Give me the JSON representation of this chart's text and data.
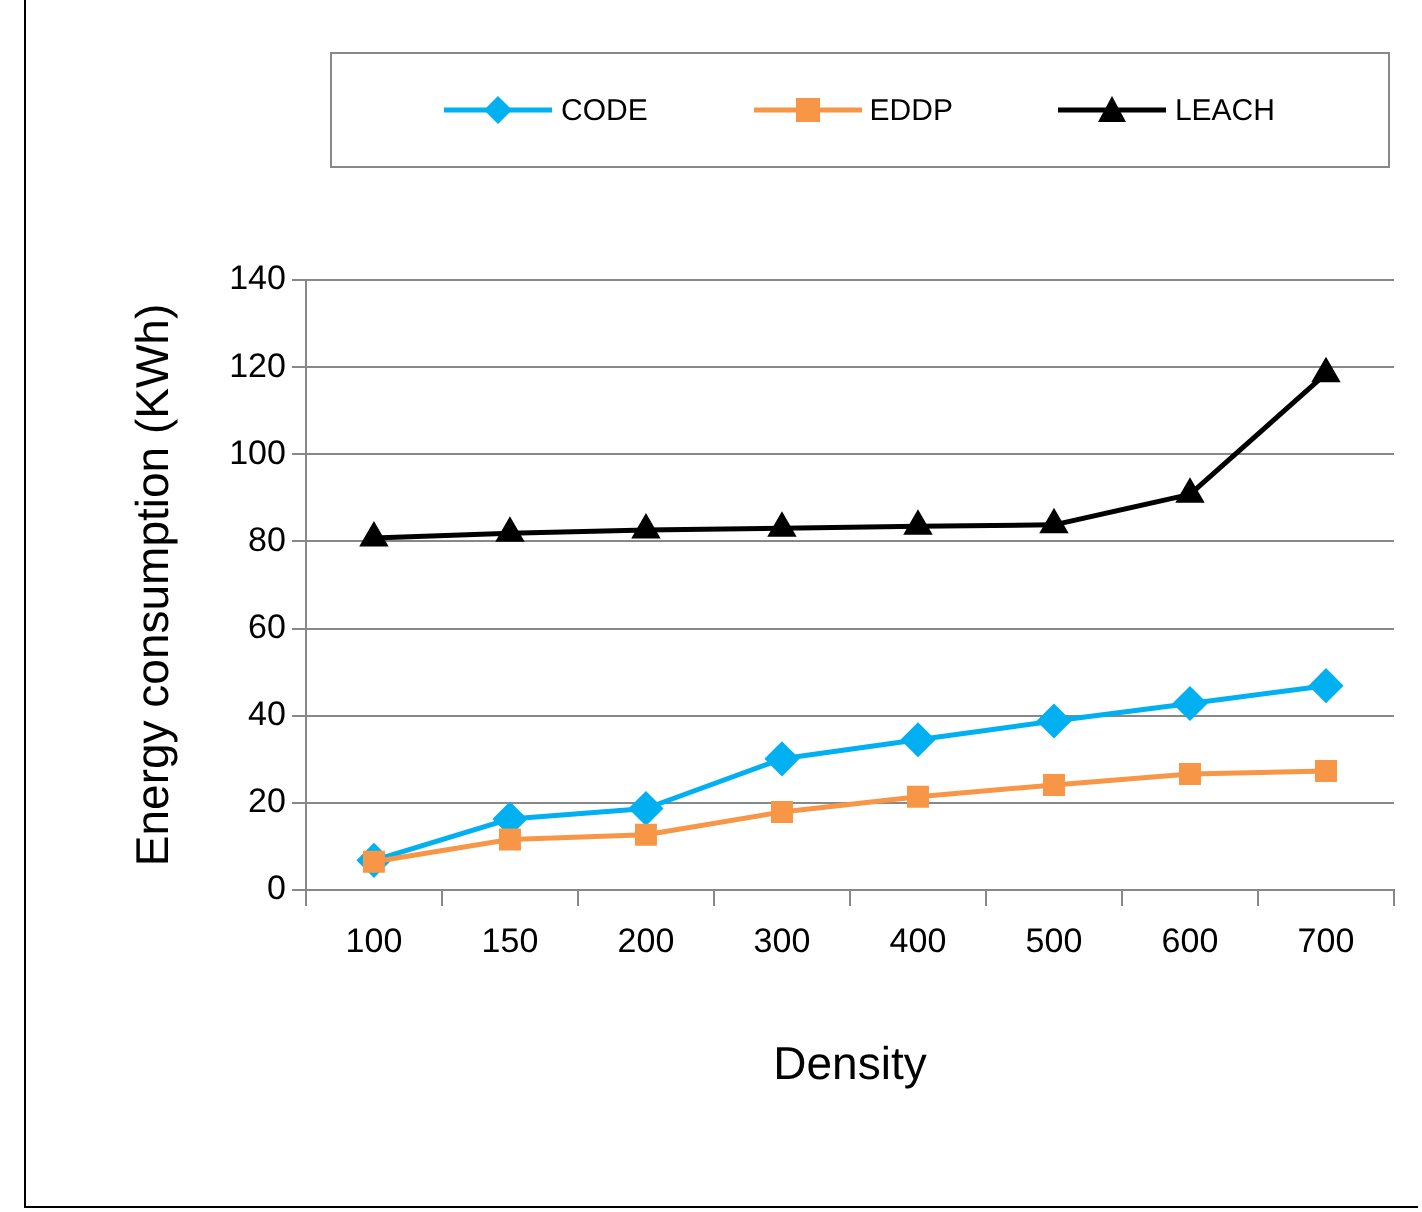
{
  "chart_data": {
    "type": "line",
    "xlabel": "Density",
    "ylabel": "Energy consumption (KWh)",
    "categories": [
      "100",
      "150",
      "200",
      "300",
      "400",
      "500",
      "600",
      "700"
    ],
    "series": [
      {
        "name": "CODE",
        "color": "#00b0f0",
        "marker": "diamond",
        "values": [
          6.8,
          16.3,
          18.7,
          30.1,
          34.5,
          38.8,
          42.8,
          46.9
        ]
      },
      {
        "name": "EDDP",
        "color": "#f79646",
        "marker": "square",
        "values": [
          6.5,
          11.6,
          12.7,
          17.9,
          21.4,
          24.1,
          26.6,
          27.3
        ]
      },
      {
        "name": "LEACH",
        "color": "#000000",
        "marker": "triangle",
        "values": [
          80.8,
          81.9,
          82.6,
          83,
          83.5,
          83.8,
          90.8,
          118.5
        ]
      }
    ],
    "ylim": [
      0,
      140
    ],
    "yticks": [
      0,
      20,
      40,
      60,
      80,
      100,
      120,
      140
    ],
    "grid": "y",
    "legend": "top"
  }
}
